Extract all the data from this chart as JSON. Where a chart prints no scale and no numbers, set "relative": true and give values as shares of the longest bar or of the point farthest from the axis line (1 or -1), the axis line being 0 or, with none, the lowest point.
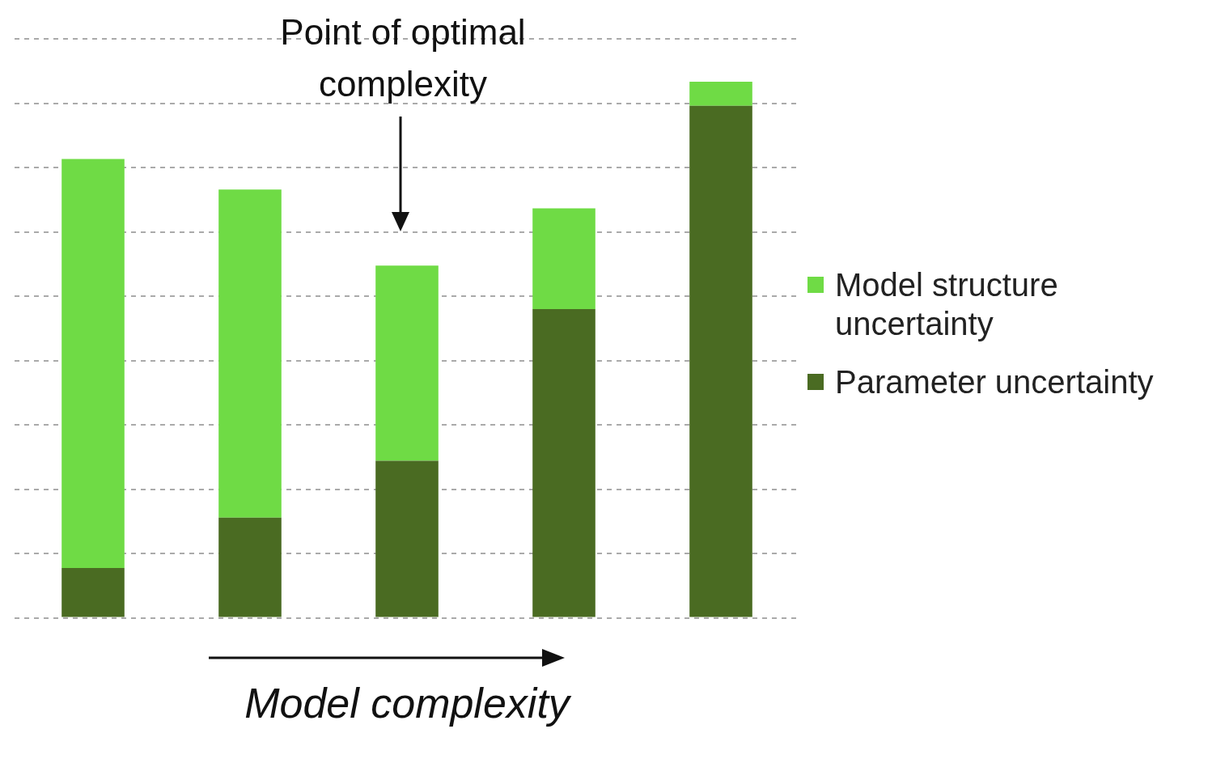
{
  "chart_data": {
    "type": "bar",
    "stacked": true,
    "relative": true,
    "categories": [
      null,
      null,
      null,
      null,
      null
    ],
    "series": [
      {
        "name": "Parameter uncertainty",
        "color": "#4a6b22",
        "values": [
          0.093,
          0.187,
          0.293,
          0.576,
          0.955
        ]
      },
      {
        "name": "Model structure uncertainty",
        "color": "#6fdb45",
        "values": [
          0.763,
          0.612,
          0.364,
          0.188,
          0.045
        ]
      }
    ],
    "xlabel": "Model complexity",
    "annotations": [
      "Point of optimal complexity"
    ],
    "legend": "right",
    "grid": "y"
  }
}
